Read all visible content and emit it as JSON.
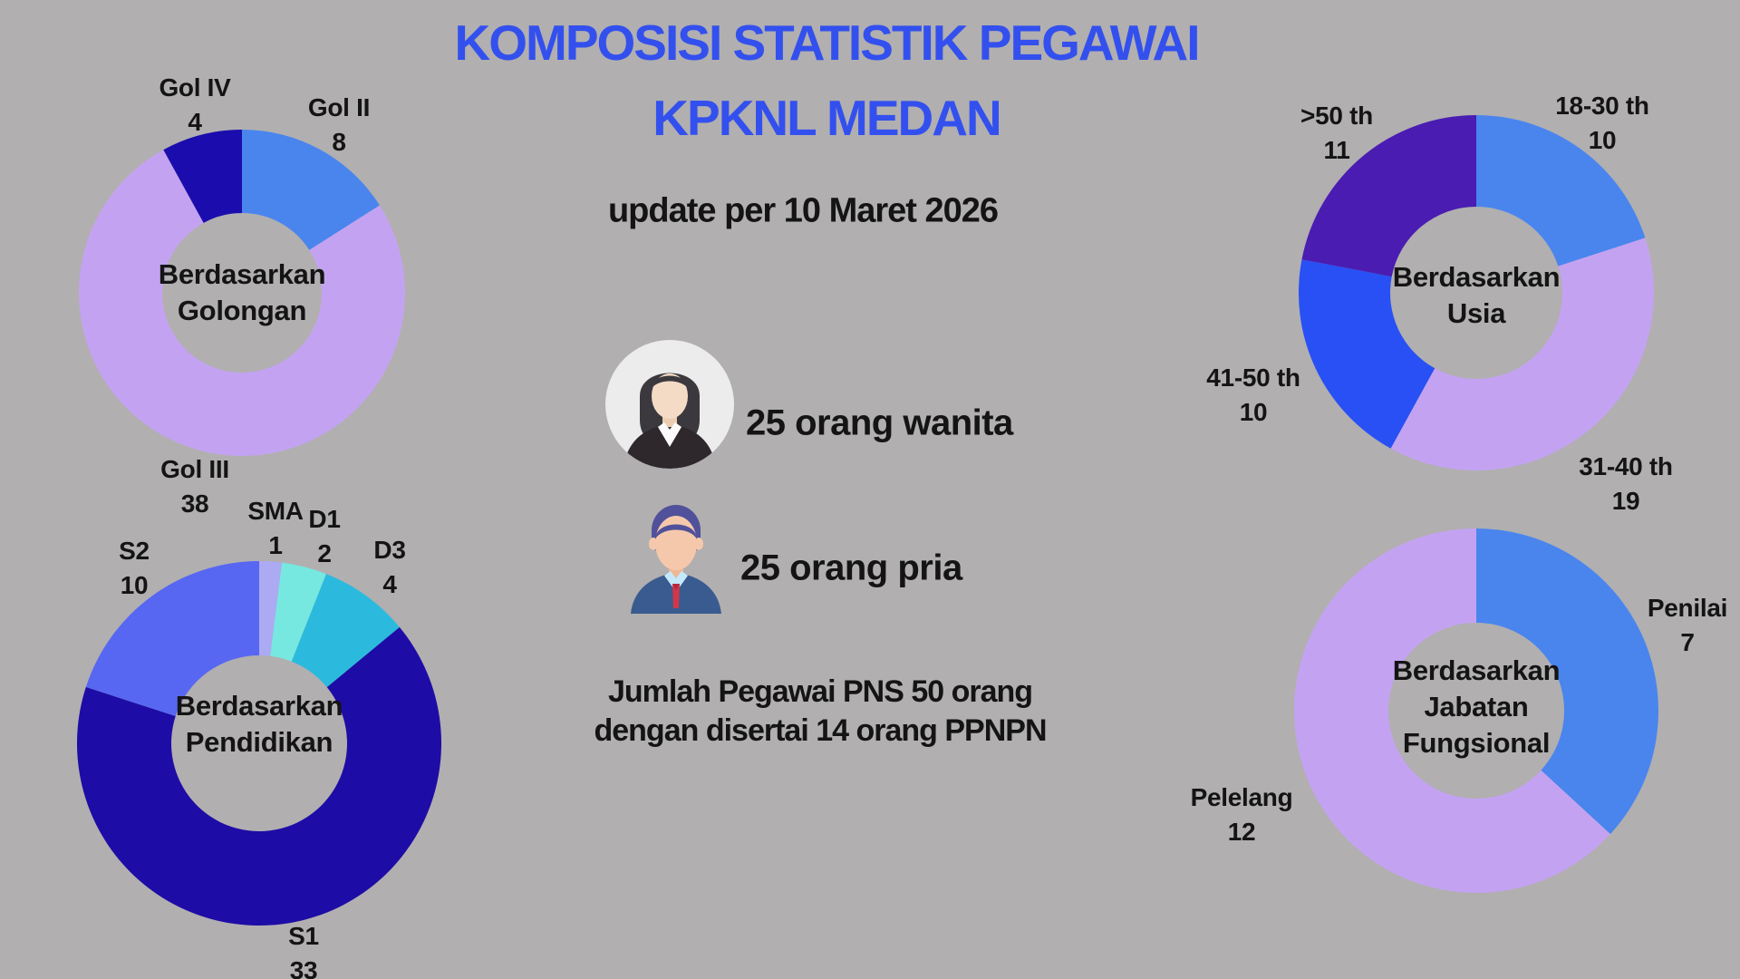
{
  "page": {
    "title_line1": "KOMPOSISI STATISTIK PEGAWAI",
    "title_line2": "KPKNL MEDAN",
    "update_text": "update per 10 Maret 2026",
    "background_color": "#b1afb0",
    "title_color": "#3350ee"
  },
  "summary": {
    "women_label": "25 orang wanita",
    "men_label": "25 orang pria",
    "total_line1": "Jumlah Pegawai PNS 50 orang",
    "total_line2": "dengan disertai 14 orang PPNPN"
  },
  "chart_data": [
    {
      "type": "donut",
      "title": "Berdasarkan Golongan",
      "center_label": [
        "Berdasarkan",
        "Golongan"
      ],
      "categories": [
        "Gol II",
        "Gol III",
        "Gol IV"
      ],
      "values": [
        8,
        38,
        4
      ],
      "colors": [
        "#4a85ee",
        "#c3a3f1",
        "#1b0dad"
      ],
      "total": 50,
      "start_angle_deg": 0,
      "direction": "clockwise"
    },
    {
      "type": "donut",
      "title": "Berdasarkan Pendidikan",
      "center_label": [
        "Berdasarkan",
        "Pendidikan"
      ],
      "categories": [
        "SMA",
        "D1",
        "D3",
        "S1",
        "S2"
      ],
      "values": [
        1,
        2,
        4,
        33,
        10
      ],
      "colors": [
        "#abaaf3",
        "#76e8e0",
        "#2bbade",
        "#1e0ca6",
        "#5767f1"
      ],
      "total": 50,
      "start_angle_deg": 0,
      "direction": "clockwise"
    },
    {
      "type": "donut",
      "title": "Berdasarkan Usia",
      "center_label": [
        "Berdasarkan",
        "Usia"
      ],
      "categories": [
        "18-30 th",
        "31-40 th",
        "41-50 th",
        ">50 th"
      ],
      "values": [
        10,
        19,
        10,
        11
      ],
      "colors": [
        "#4a85ee",
        "#c3a3f1",
        "#2850f4",
        "#4a1cb2"
      ],
      "total": 50,
      "start_angle_deg": 0,
      "direction": "clockwise"
    },
    {
      "type": "donut",
      "title": "Berdasarkan Jabatan Fungsional",
      "center_label": [
        "Berdasarkan",
        "Jabatan",
        "Fungsional"
      ],
      "categories": [
        "Penilai",
        "Pelelang"
      ],
      "values": [
        7,
        12
      ],
      "colors": [
        "#4a85ee",
        "#c3a3f1"
      ],
      "total": 19,
      "start_angle_deg": 0,
      "direction": "clockwise"
    }
  ]
}
